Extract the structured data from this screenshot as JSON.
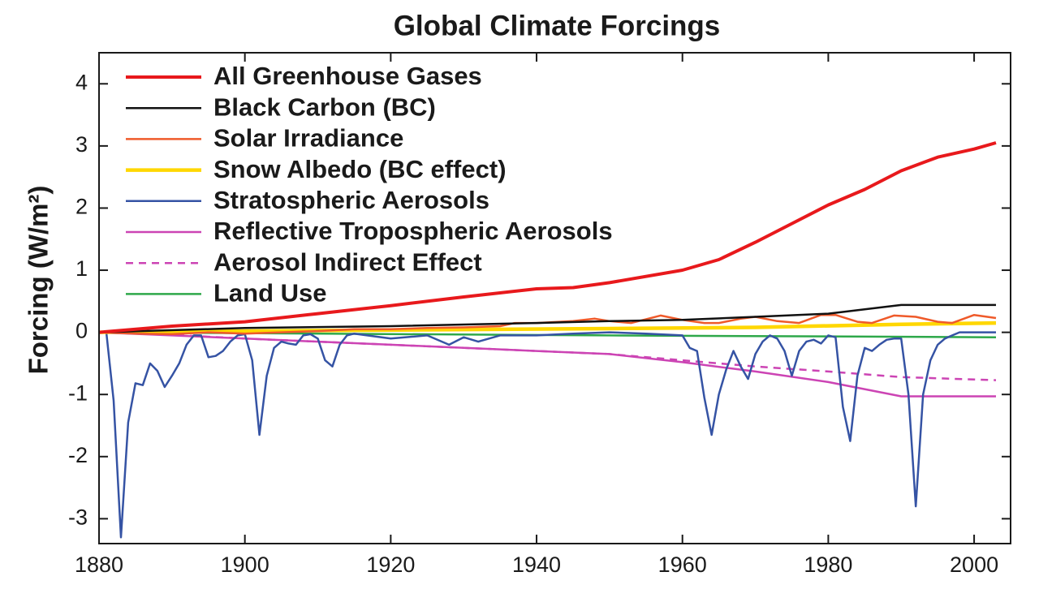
{
  "chart_data": {
    "type": "line",
    "title": "Global Climate Forcings",
    "y_label": "Forcing (W/m²)",
    "xlim": [
      1880,
      2005
    ],
    "xticks": [
      1880,
      1900,
      1920,
      1940,
      1960,
      1980,
      2000
    ],
    "ylim": [
      -3.4,
      4.5
    ],
    "yticks": [
      -3,
      -2,
      -1,
      0,
      1,
      2,
      3,
      4
    ],
    "legend": "top-left",
    "series": [
      {
        "name": "All Greenhouse Gases",
        "color": "#e8191c",
        "line_width": 4,
        "dashed": false,
        "x": [
          1880,
          1890,
          1900,
          1910,
          1920,
          1930,
          1940,
          1945,
          1950,
          1960,
          1965,
          1970,
          1975,
          1980,
          1985,
          1990,
          1995,
          2000,
          2003
        ],
        "values": [
          0,
          0.1,
          0.17,
          0.3,
          0.43,
          0.57,
          0.7,
          0.72,
          0.8,
          1.0,
          1.17,
          1.45,
          1.75,
          2.05,
          2.3,
          2.6,
          2.82,
          2.95,
          3.05
        ]
      },
      {
        "name": "Black Carbon (BC)",
        "color": "#111111",
        "line_width": 2.5,
        "dashed": false,
        "x": [
          1880,
          1900,
          1920,
          1940,
          1950,
          1960,
          1970,
          1980,
          1990,
          2003
        ],
        "values": [
          0,
          0.07,
          0.1,
          0.15,
          0.18,
          0.2,
          0.25,
          0.3,
          0.44,
          0.44
        ]
      },
      {
        "name": "Solar Irradiance",
        "color": "#ef5a2a",
        "line_width": 2.5,
        "dashed": false,
        "x": [
          1880,
          1885,
          1890,
          1895,
          1900,
          1905,
          1910,
          1915,
          1920,
          1925,
          1930,
          1935,
          1937,
          1940,
          1945,
          1948,
          1950,
          1953,
          1957,
          1960,
          1963,
          1965,
          1968,
          1970,
          1973,
          1976,
          1979,
          1981,
          1984,
          1986,
          1989,
          1992,
          1995,
          1997,
          2000,
          2003
        ],
        "values": [
          0,
          -0.02,
          -0.03,
          0,
          -0.02,
          0,
          0.02,
          0.05,
          0.05,
          0.07,
          0.08,
          0.1,
          0.15,
          0.15,
          0.18,
          0.22,
          0.18,
          0.15,
          0.27,
          0.2,
          0.15,
          0.15,
          0.22,
          0.25,
          0.18,
          0.15,
          0.28,
          0.28,
          0.17,
          0.15,
          0.27,
          0.25,
          0.17,
          0.15,
          0.28,
          0.23
        ]
      },
      {
        "name": "Snow Albedo (BC effect)",
        "color": "#ffd700",
        "line_width": 4.5,
        "dashed": false,
        "x": [
          1880,
          1900,
          1950,
          1970,
          1990,
          2003
        ],
        "values": [
          0,
          0.02,
          0.06,
          0.08,
          0.13,
          0.15
        ]
      },
      {
        "name": "Stratospheric Aerosols",
        "color": "#3553a4",
        "line_width": 2.5,
        "dashed": false,
        "x": [
          1880,
          1881,
          1882,
          1883,
          1884,
          1885,
          1886,
          1887,
          1888,
          1889,
          1890,
          1891,
          1892,
          1893,
          1894,
          1895,
          1896,
          1897,
          1898,
          1899,
          1900,
          1901,
          1902,
          1903,
          1904,
          1905,
          1906,
          1907,
          1908,
          1909,
          1910,
          1911,
          1912,
          1913,
          1914,
          1915,
          1920,
          1925,
          1928,
          1930,
          1932,
          1935,
          1940,
          1945,
          1950,
          1955,
          1960,
          1961,
          1962,
          1963,
          1964,
          1965,
          1966,
          1967,
          1968,
          1969,
          1970,
          1971,
          1972,
          1973,
          1974,
          1975,
          1976,
          1977,
          1978,
          1979,
          1980,
          1981,
          1982,
          1983,
          1984,
          1985,
          1986,
          1987,
          1988,
          1989,
          1990,
          1991,
          1992,
          1993,
          1994,
          1995,
          1996,
          1997,
          1998,
          2003
        ],
        "values": [
          0,
          0,
          -1.1,
          -3.3,
          -1.45,
          -0.82,
          -0.85,
          -0.5,
          -0.62,
          -0.88,
          -0.7,
          -0.5,
          -0.2,
          -0.05,
          -0.05,
          -0.4,
          -0.38,
          -0.3,
          -0.15,
          -0.05,
          -0.03,
          -0.45,
          -1.65,
          -0.7,
          -0.25,
          -0.15,
          -0.18,
          -0.2,
          -0.05,
          -0.03,
          -0.1,
          -0.45,
          -0.55,
          -0.2,
          -0.05,
          -0.02,
          -0.1,
          -0.05,
          -0.2,
          -0.08,
          -0.15,
          -0.05,
          -0.05,
          -0.02,
          0,
          -0.02,
          -0.05,
          -0.25,
          -0.3,
          -1.05,
          -1.65,
          -1.0,
          -0.6,
          -0.3,
          -0.55,
          -0.75,
          -0.35,
          -0.15,
          -0.05,
          -0.1,
          -0.3,
          -0.7,
          -0.3,
          -0.15,
          -0.12,
          -0.18,
          -0.05,
          -0.08,
          -1.2,
          -1.75,
          -0.7,
          -0.25,
          -0.3,
          -0.2,
          -0.12,
          -0.1,
          -0.1,
          -1.0,
          -2.8,
          -1.0,
          -0.45,
          -0.2,
          -0.1,
          -0.05,
          0,
          0
        ]
      },
      {
        "name": "Reflective Tropospheric Aerosols",
        "color": "#cc44b4",
        "line_width": 2.5,
        "dashed": false,
        "x": [
          1880,
          1890,
          1900,
          1920,
          1940,
          1950,
          1960,
          1970,
          1980,
          1990,
          2003
        ],
        "values": [
          0,
          -0.05,
          -0.1,
          -0.2,
          -0.3,
          -0.35,
          -0.48,
          -0.63,
          -0.8,
          -1.03,
          -1.03
        ]
      },
      {
        "name": "Aerosol Indirect Effect",
        "color": "#cc44b4",
        "line_width": 2.5,
        "dashed": true,
        "x": [
          1880,
          1890,
          1900,
          1920,
          1940,
          1950,
          1960,
          1970,
          1980,
          1990,
          2003
        ],
        "values": [
          0,
          -0.04,
          -0.1,
          -0.2,
          -0.3,
          -0.35,
          -0.45,
          -0.55,
          -0.63,
          -0.72,
          -0.77
        ]
      },
      {
        "name": "Land Use",
        "color": "#2ea84a",
        "line_width": 2.5,
        "dashed": false,
        "x": [
          1880,
          1950,
          2003
        ],
        "values": [
          0,
          -0.05,
          -0.08
        ]
      }
    ]
  }
}
